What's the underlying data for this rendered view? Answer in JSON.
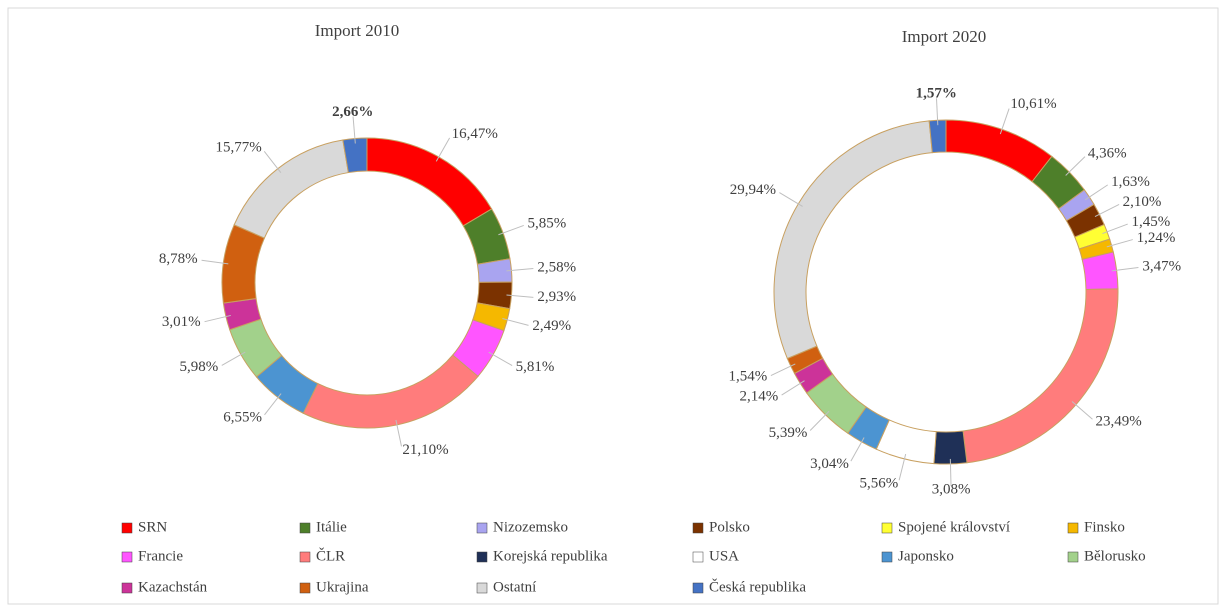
{
  "chart_data": [
    {
      "type": "donut",
      "title": "Import 2010",
      "categories": [
        "SRN",
        "Itálie",
        "Nizozemsko",
        "Polsko",
        "Spojené království",
        "Finsko",
        "Francie",
        "ČLR",
        "Korejská republika",
        "USA",
        "Japonsko",
        "Bělorusko",
        "Kazachstán",
        "Ukrajina",
        "Ostatní",
        "Česká republika"
      ],
      "colors": [
        "#ff0000",
        "#4e7f2a",
        "#a9a4f0",
        "#7b3200",
        "#ffff33",
        "#f5b800",
        "#ff55ff",
        "#ff7c7c",
        "#1f3057",
        "#ffffff",
        "#4c94d1",
        "#a2d18b",
        "#cc3399",
        "#d06010",
        "#d9d9d9",
        "#4472c4"
      ],
      "values": [
        16.47,
        5.85,
        2.58,
        2.93,
        null,
        2.49,
        5.81,
        21.1,
        null,
        null,
        6.55,
        5.98,
        3.01,
        8.78,
        15.77,
        2.66
      ],
      "value_labels": [
        "16,47%",
        "5,85%",
        "2,58%",
        "2,93%",
        null,
        "2,49%",
        "5,81%",
        "21,10%",
        null,
        null,
        "6,55%",
        "5,98%",
        "3,01%",
        "8,78%",
        "15,77%",
        "2,66%"
      ]
    },
    {
      "type": "donut",
      "title": "Import 2020",
      "categories": [
        "SRN",
        "Itálie",
        "Nizozemsko",
        "Polsko",
        "Spojené království",
        "Finsko",
        "Francie",
        "ČLR",
        "Korejská republika",
        "USA",
        "Japonsko",
        "Bělorusko",
        "Kazachstán",
        "Ukrajina",
        "Ostatní",
        "Česká republika"
      ],
      "colors": [
        "#ff0000",
        "#4e7f2a",
        "#a9a4f0",
        "#7b3200",
        "#ffff33",
        "#f5b800",
        "#ff55ff",
        "#ff7c7c",
        "#1f3057",
        "#ffffff",
        "#4c94d1",
        "#a2d18b",
        "#cc3399",
        "#d06010",
        "#d9d9d9",
        "#4472c4"
      ],
      "values": [
        10.61,
        4.36,
        1.63,
        2.1,
        1.45,
        1.24,
        3.47,
        23.49,
        3.08,
        5.56,
        3.04,
        5.39,
        2.14,
        1.54,
        29.94,
        1.57
      ],
      "value_labels": [
        "10,61%",
        "4,36%",
        "1,63%",
        "2,10%",
        "1,45%",
        "1,24%",
        "3,47%",
        "23,49%",
        "3,08%",
        "5,56%",
        "3,04%",
        "5,39%",
        "2,14%",
        "1,54%",
        "29,94%",
        "1,57%"
      ]
    }
  ]
}
